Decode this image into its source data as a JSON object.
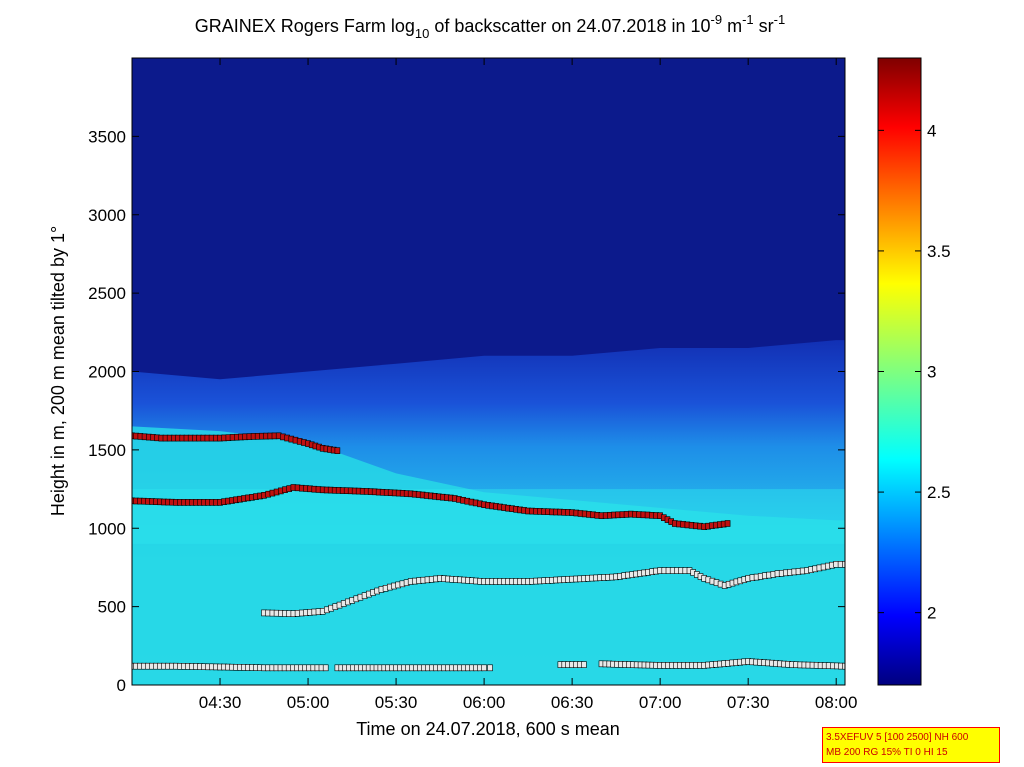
{
  "chart_data": {
    "type": "heatmap",
    "title": {
      "pre": "GRAINEX Rogers Farm log",
      "sub": "10",
      "mid": " of backscatter on 24.07.2018 in 10",
      "sup1": "-9",
      "mid2": " m",
      "sup2": "-1",
      "mid3": " sr",
      "sup3": "-1"
    },
    "xlabel": "Time on 24.07.2018, 600 s mean",
    "ylabel": "Height in m, 200 m mean tilted by 1°",
    "xlim": [
      "04:00",
      "08:03"
    ],
    "ylim": [
      0,
      4000
    ],
    "x_ticks": [
      "04:30",
      "05:00",
      "05:30",
      "06:00",
      "06:30",
      "07:00",
      "07:30",
      "08:00"
    ],
    "y_ticks": [
      0,
      500,
      1000,
      1500,
      2000,
      2500,
      3000,
      3500
    ],
    "colorbar": {
      "min": 1.7,
      "max": 4.3,
      "ticks": [
        "2",
        "2.5",
        "3",
        "3.5",
        "4"
      ]
    },
    "colors": {
      "deep_blue": "#0c1a8c",
      "blue": "#1a3fd6",
      "mid_blue": "#1e6ee6",
      "cyan": "#27d8e6",
      "light_cyan": "#2fe6ee",
      "red_marker": "#c01010",
      "yellow_marker": "#e6e06a",
      "white_marker": "#e8e8e8"
    },
    "field": [
      {
        "time": "04:00",
        "layer_top": 1650,
        "residual_top": 2000
      },
      {
        "time": "04:30",
        "layer_top": 1620,
        "residual_top": 1950
      },
      {
        "time": "05:00",
        "layer_top": 1550,
        "residual_top": 2000
      },
      {
        "time": "05:30",
        "layer_top": 1350,
        "residual_top": 2050
      },
      {
        "time": "06:00",
        "layer_top": 1230,
        "residual_top": 2100
      },
      {
        "time": "06:30",
        "layer_top": 1180,
        "residual_top": 2100
      },
      {
        "time": "07:00",
        "layer_top": 1130,
        "residual_top": 2150
      },
      {
        "time": "07:30",
        "layer_top": 1080,
        "residual_top": 2150
      },
      {
        "time": "08:00",
        "layer_top": 1050,
        "residual_top": 2200
      }
    ],
    "series": [
      {
        "marker": "red",
        "points": [
          [
            "04:00",
            1590
          ],
          [
            "04:10",
            1575
          ],
          [
            "04:20",
            1575
          ],
          [
            "04:30",
            1575
          ],
          [
            "04:40",
            1585
          ],
          [
            "04:50",
            1590
          ],
          [
            "05:00",
            1540
          ],
          [
            "05:05",
            1510
          ],
          [
            "05:10",
            1495
          ]
        ]
      },
      {
        "marker": "red",
        "points": [
          [
            "04:00",
            1175
          ],
          [
            "04:15",
            1165
          ],
          [
            "04:30",
            1165
          ],
          [
            "04:45",
            1210
          ],
          [
            "04:55",
            1260
          ],
          [
            "05:05",
            1245
          ],
          [
            "05:20",
            1235
          ],
          [
            "05:35",
            1220
          ],
          [
            "05:50",
            1190
          ],
          [
            "06:00",
            1150
          ],
          [
            "06:15",
            1110
          ],
          [
            "06:30",
            1100
          ],
          [
            "06:40",
            1080
          ],
          [
            "06:50",
            1090
          ],
          [
            "07:00",
            1080
          ],
          [
            "07:05",
            1030
          ],
          [
            "07:15",
            1010
          ],
          [
            "07:23",
            1030
          ]
        ]
      },
      {
        "marker": "white",
        "points": [
          [
            "04:45",
            460
          ],
          [
            "04:55",
            455
          ],
          [
            "05:05",
            470
          ],
          [
            "05:15",
            540
          ],
          [
            "05:25",
            610
          ],
          [
            "05:35",
            660
          ],
          [
            "05:45",
            680
          ],
          [
            "06:00",
            660
          ],
          [
            "06:15",
            660
          ],
          [
            "06:30",
            675
          ],
          [
            "06:45",
            690
          ],
          [
            "07:00",
            730
          ],
          [
            "07:10",
            730
          ],
          [
            "07:15",
            680
          ],
          [
            "07:22",
            635
          ],
          [
            "07:30",
            680
          ],
          [
            "07:40",
            710
          ],
          [
            "07:50",
            730
          ],
          [
            "08:00",
            770
          ],
          [
            "08:03",
            770
          ]
        ]
      },
      {
        "marker": "white",
        "points": [
          [
            "04:00",
            120
          ],
          [
            "04:15",
            120
          ],
          [
            "04:30",
            115
          ],
          [
            "04:45",
            110
          ],
          [
            "05:06",
            110
          ]
        ]
      },
      {
        "marker": "white",
        "points": [
          [
            "05:10",
            110
          ],
          [
            "05:30",
            110
          ],
          [
            "06:00",
            110
          ],
          [
            "06:02",
            110
          ]
        ]
      },
      {
        "marker": "white",
        "points": [
          [
            "06:26",
            130
          ],
          [
            "06:34",
            130
          ]
        ]
      },
      {
        "marker": "white",
        "points": [
          [
            "06:40",
            135
          ],
          [
            "07:00",
            125
          ],
          [
            "07:15",
            125
          ],
          [
            "07:30",
            150
          ],
          [
            "07:45",
            130
          ],
          [
            "08:03",
            120
          ]
        ]
      }
    ]
  },
  "info_box": {
    "line1": "3.5XEFUV 5 [100 2500] NH 600",
    "line2": "MB 200 RG 15% TI 0 HI 15"
  }
}
